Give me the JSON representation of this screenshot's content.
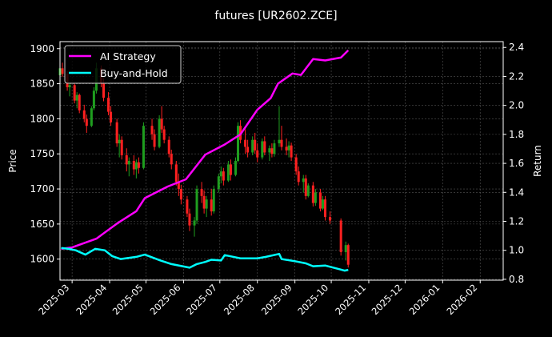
{
  "chart_data": {
    "type": "candlestick+line",
    "title": "futures [UR2602.ZCE]",
    "ylabel_left": "Price",
    "ylabel_right": "Return",
    "xlim": [
      "2025-02-19",
      "2026-02-20"
    ],
    "ylim_left": [
      1570,
      1910
    ],
    "ylim_right": [
      0.794,
      2.44
    ],
    "grid": true,
    "legend_position": "top-left",
    "x_ticks": [
      "2025-03",
      "2025-04",
      "2025-05",
      "2025-06",
      "2025-07",
      "2025-08",
      "2025-09",
      "2025-10",
      "2025-11",
      "2025-12",
      "2026-01",
      "2026-02"
    ],
    "y_ticks_left": [
      1600,
      1650,
      1700,
      1750,
      1800,
      1850,
      1900
    ],
    "y_ticks_right": [
      "0.8",
      "1.0",
      "1.2",
      "1.4",
      "1.6",
      "1.8",
      "2.0",
      "2.2",
      "2.4"
    ],
    "colors": {
      "up": "#1f9e1f",
      "down": "#ff2020",
      "ai_strategy": "#ff00ff",
      "buy_and_hold": "#00ffff",
      "background": "#000000",
      "grid": "#555555"
    },
    "candles_columns": [
      "date",
      "open",
      "high",
      "low",
      "close"
    ],
    "candles": [
      [
        "2025-02-19",
        1862,
        1878,
        1858,
        1872
      ],
      [
        "2025-02-21",
        1872,
        1880,
        1860,
        1864
      ],
      [
        "2025-02-25",
        1864,
        1868,
        1840,
        1845
      ],
      [
        "2025-02-27",
        1845,
        1852,
        1832,
        1848
      ],
      [
        "2025-03-03",
        1848,
        1850,
        1822,
        1826
      ],
      [
        "2025-03-05",
        1826,
        1838,
        1815,
        1834
      ],
      [
        "2025-03-07",
        1834,
        1836,
        1808,
        1812
      ],
      [
        "2025-03-11",
        1812,
        1820,
        1795,
        1800
      ],
      [
        "2025-03-13",
        1800,
        1806,
        1780,
        1790
      ],
      [
        "2025-03-17",
        1790,
        1818,
        1788,
        1815
      ],
      [
        "2025-03-19",
        1815,
        1845,
        1812,
        1840
      ],
      [
        "2025-03-21",
        1840,
        1880,
        1836,
        1872
      ],
      [
        "2025-03-25",
        1872,
        1876,
        1845,
        1850
      ],
      [
        "2025-03-27",
        1850,
        1858,
        1825,
        1830
      ],
      [
        "2025-03-31",
        1830,
        1838,
        1805,
        1810
      ],
      [
        "2025-04-02",
        1810,
        1818,
        1790,
        1795
      ],
      [
        "2025-04-07",
        1795,
        1800,
        1760,
        1765
      ],
      [
        "2025-04-09",
        1765,
        1778,
        1745,
        1770
      ],
      [
        "2025-04-11",
        1770,
        1775,
        1742,
        1748
      ],
      [
        "2025-04-15",
        1748,
        1758,
        1725,
        1735
      ],
      [
        "2025-04-17",
        1735,
        1745,
        1718,
        1740
      ],
      [
        "2025-04-21",
        1740,
        1748,
        1720,
        1728
      ],
      [
        "2025-04-23",
        1728,
        1742,
        1715,
        1738
      ],
      [
        "2025-04-25",
        1738,
        1745,
        1722,
        1730
      ],
      [
        "2025-04-29",
        1730,
        1795,
        1728,
        1790
      ],
      [
        "2025-05-06",
        1790,
        1800,
        1770,
        1778
      ],
      [
        "2025-05-08",
        1778,
        1785,
        1755,
        1760
      ],
      [
        "2025-05-12",
        1760,
        1805,
        1758,
        1800
      ],
      [
        "2025-05-14",
        1800,
        1818,
        1780,
        1785
      ],
      [
        "2025-05-16",
        1785,
        1790,
        1765,
        1770
      ],
      [
        "2025-05-20",
        1770,
        1775,
        1745,
        1750
      ],
      [
        "2025-05-22",
        1750,
        1756,
        1728,
        1735
      ],
      [
        "2025-05-26",
        1735,
        1740,
        1705,
        1710
      ],
      [
        "2025-05-28",
        1710,
        1722,
        1690,
        1700
      ],
      [
        "2025-05-30",
        1700,
        1706,
        1678,
        1685
      ],
      [
        "2025-06-04",
        1685,
        1690,
        1660,
        1665
      ],
      [
        "2025-06-06",
        1665,
        1672,
        1640,
        1648
      ],
      [
        "2025-06-10",
        1648,
        1660,
        1632,
        1655
      ],
      [
        "2025-06-12",
        1655,
        1705,
        1650,
        1700
      ],
      [
        "2025-06-16",
        1700,
        1710,
        1680,
        1690
      ],
      [
        "2025-06-18",
        1690,
        1698,
        1665,
        1672
      ],
      [
        "2025-06-20",
        1672,
        1690,
        1660,
        1685
      ],
      [
        "2025-06-24",
        1685,
        1700,
        1662,
        1668
      ],
      [
        "2025-06-26",
        1668,
        1705,
        1665,
        1700
      ],
      [
        "2025-06-30",
        1700,
        1722,
        1695,
        1718
      ],
      [
        "2025-07-02",
        1718,
        1732,
        1708,
        1725
      ],
      [
        "2025-07-04",
        1725,
        1730,
        1705,
        1712
      ],
      [
        "2025-07-08",
        1712,
        1740,
        1710,
        1735
      ],
      [
        "2025-07-10",
        1735,
        1742,
        1712,
        1720
      ],
      [
        "2025-07-14",
        1720,
        1745,
        1718,
        1740
      ],
      [
        "2025-07-16",
        1740,
        1795,
        1738,
        1790
      ],
      [
        "2025-07-18",
        1790,
        1798,
        1765,
        1770
      ],
      [
        "2025-07-22",
        1770,
        1785,
        1750,
        1760
      ],
      [
        "2025-07-24",
        1760,
        1770,
        1745,
        1752
      ],
      [
        "2025-07-28",
        1752,
        1775,
        1748,
        1770
      ],
      [
        "2025-07-30",
        1770,
        1780,
        1750,
        1755
      ],
      [
        "2025-08-01",
        1755,
        1765,
        1738,
        1745
      ],
      [
        "2025-08-05",
        1745,
        1772,
        1742,
        1768
      ],
      [
        "2025-08-07",
        1768,
        1775,
        1748,
        1752
      ],
      [
        "2025-08-11",
        1752,
        1762,
        1740,
        1758
      ],
      [
        "2025-08-13",
        1758,
        1765,
        1745,
        1750
      ],
      [
        "2025-08-15",
        1750,
        1770,
        1746,
        1765
      ],
      [
        "2025-08-19",
        1765,
        1818,
        1760,
        1770
      ],
      [
        "2025-08-21",
        1770,
        1790,
        1755,
        1760
      ],
      [
        "2025-08-25",
        1760,
        1772,
        1748,
        1755
      ],
      [
        "2025-08-27",
        1755,
        1768,
        1745,
        1762
      ],
      [
        "2025-08-29",
        1762,
        1766,
        1740,
        1745
      ],
      [
        "2025-09-02",
        1745,
        1750,
        1720,
        1725
      ],
      [
        "2025-09-04",
        1725,
        1732,
        1705,
        1710
      ],
      [
        "2025-09-08",
        1710,
        1720,
        1695,
        1715
      ],
      [
        "2025-09-10",
        1715,
        1720,
        1685,
        1690
      ],
      [
        "2025-09-12",
        1690,
        1708,
        1688,
        1705
      ],
      [
        "2025-09-16",
        1705,
        1710,
        1675,
        1680
      ],
      [
        "2025-09-18",
        1680,
        1700,
        1676,
        1695
      ],
      [
        "2025-09-22",
        1695,
        1700,
        1668,
        1672
      ],
      [
        "2025-09-24",
        1672,
        1690,
        1670,
        1685
      ],
      [
        "2025-09-26",
        1685,
        1690,
        1655,
        1660
      ],
      [
        "2025-09-30",
        1660,
        1668,
        1650,
        1655
      ],
      [
        "2025-10-09",
        1655,
        1658,
        1605,
        1610
      ],
      [
        "2025-10-13",
        1610,
        1625,
        1598,
        1620
      ],
      [
        "2025-10-15",
        1620,
        1622,
        1588,
        1592
      ]
    ],
    "series": [
      {
        "name": "AI Strategy",
        "axis": "right",
        "x": [
          "2025-02-20",
          "2025-03-01",
          "2025-03-21",
          "2025-04-08",
          "2025-04-23",
          "2025-04-30",
          "2025-05-19",
          "2025-06-03",
          "2025-06-19",
          "2025-07-05",
          "2025-07-18",
          "2025-08-01",
          "2025-08-12",
          "2025-08-18",
          "2025-08-30",
          "2025-09-06",
          "2025-09-16",
          "2025-09-26",
          "2025-10-09",
          "2025-10-15"
        ],
        "values": [
          1.01,
          1.02,
          1.08,
          1.19,
          1.27,
          1.36,
          1.44,
          1.49,
          1.66,
          1.73,
          1.8,
          1.97,
          2.05,
          2.15,
          2.22,
          2.21,
          2.32,
          2.31,
          2.33,
          2.38
        ]
      },
      {
        "name": "Buy-and-Hold",
        "axis": "right",
        "x": [
          "2025-02-20",
          "2025-02-26",
          "2025-03-04",
          "2025-03-12",
          "2025-03-20",
          "2025-03-28",
          "2025-04-03",
          "2025-04-10",
          "2025-04-23",
          "2025-04-30",
          "2025-05-13",
          "2025-05-22",
          "2025-06-06",
          "2025-06-12",
          "2025-06-19",
          "2025-06-24",
          "2025-07-02",
          "2025-07-05",
          "2025-07-18",
          "2025-08-01",
          "2025-08-08",
          "2025-08-19",
          "2025-08-21",
          "2025-09-01",
          "2025-09-10",
          "2025-09-16",
          "2025-09-26",
          "2025-10-09",
          "2025-10-12",
          "2025-10-15"
        ],
        "values": [
          1.016,
          1.01,
          1.0,
          0.97,
          1.01,
          1.0,
          0.96,
          0.94,
          0.955,
          0.97,
          0.93,
          0.905,
          0.88,
          0.905,
          0.92,
          0.935,
          0.93,
          0.967,
          0.945,
          0.945,
          0.955,
          0.975,
          0.94,
          0.925,
          0.91,
          0.89,
          0.895,
          0.867,
          0.86,
          0.865
        ]
      }
    ]
  }
}
